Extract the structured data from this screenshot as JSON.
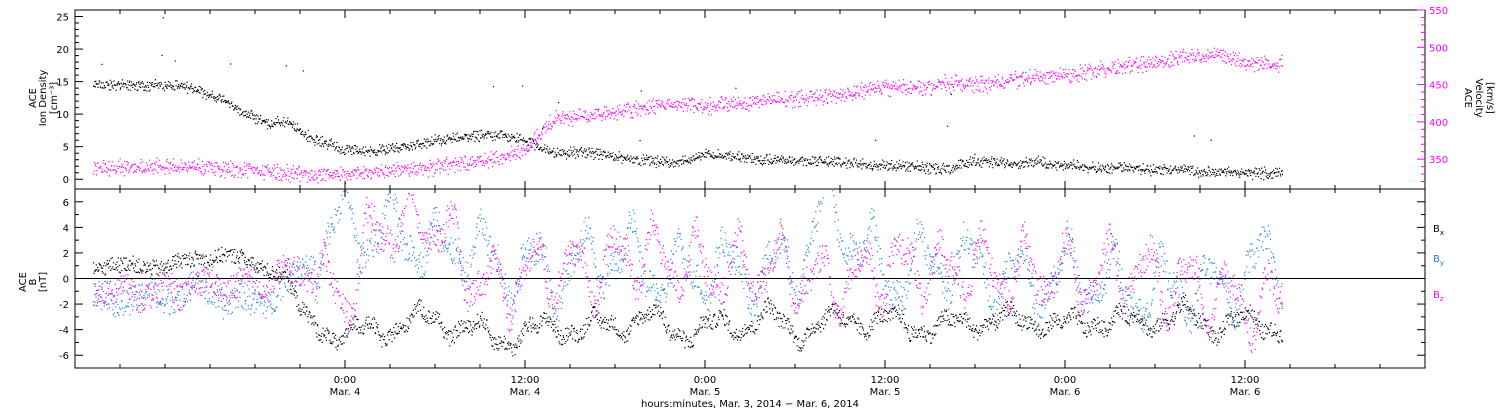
{
  "chart_data": [
    {
      "type": "scatter",
      "panel": "plasma",
      "ylabel_left": [
        "ACE",
        "Ion Density",
        "[cm⁻³]"
      ],
      "ylabel_right": [
        "ACE",
        "Velocity",
        "[km/s]"
      ],
      "ylim_left": [
        -1.5,
        26
      ],
      "yticks_left": [
        0,
        5,
        10,
        15,
        20,
        25
      ],
      "ylim_right": [
        310,
        550
      ],
      "yticks_right": [
        350,
        400,
        450,
        500,
        550
      ],
      "colors": {
        "density": "#000000",
        "velocity": "#ff00ff"
      },
      "series": [
        {
          "name": "Ion Density",
          "axis": "left",
          "hours": [
            -12,
            -10,
            -8,
            -7,
            -6,
            -5,
            -4,
            -3,
            -2,
            -1,
            0,
            2,
            4,
            6,
            8,
            10,
            12,
            14,
            16,
            18,
            20,
            22,
            24,
            26,
            28,
            30,
            32,
            34,
            36,
            38,
            40,
            42,
            44,
            46,
            48,
            50,
            52,
            54,
            56,
            58,
            60,
            62
          ],
          "values": [
            14.5,
            14.0,
            12.0,
            10.5,
            9.5,
            8.5,
            9.0,
            7.5,
            6.0,
            5.5,
            4.5,
            4.5,
            5.0,
            6.0,
            6.5,
            7.0,
            6.0,
            4.0,
            4.2,
            3.5,
            3.0,
            2.5,
            4.0,
            3.5,
            3.0,
            3.0,
            2.8,
            2.5,
            2.2,
            2.0,
            1.6,
            3.0,
            2.5,
            2.8,
            2.2,
            1.8,
            1.8,
            1.5,
            1.5,
            1.2,
            1.0,
            1.0
          ],
          "spread": 1.0
        },
        {
          "name": "Velocity",
          "axis": "right",
          "hours": [
            -12,
            -10,
            -8,
            -6,
            -4,
            -2,
            0,
            2,
            4,
            6,
            8,
            10,
            11,
            12,
            13,
            14,
            16,
            18,
            20,
            22,
            24,
            26,
            28,
            30,
            32,
            34,
            36,
            38,
            40,
            42,
            44,
            46,
            48,
            50,
            52,
            54,
            56,
            58,
            60,
            62
          ],
          "values": [
            340,
            340,
            338,
            335,
            332,
            330,
            330,
            335,
            338,
            340,
            345,
            350,
            360,
            362,
            385,
            405,
            408,
            415,
            420,
            425,
            422,
            425,
            430,
            432,
            435,
            440,
            448,
            445,
            452,
            450,
            455,
            460,
            462,
            470,
            475,
            480,
            490,
            490,
            480,
            478
          ],
          "spread": 13.0
        }
      ]
    },
    {
      "type": "scatter",
      "panel": "magnetic-field",
      "ylabel_left": [
        "ACE",
        "B",
        "[nT]"
      ],
      "ylim_left": [
        -7,
        7
      ],
      "yticks_left": [
        -6,
        -4,
        -2,
        0,
        2,
        4,
        6
      ],
      "zero_line": true,
      "colors": {
        "Bx": "#000000",
        "By": "#1f84d6",
        "Bz": "#ff00ff"
      },
      "legend": [
        {
          "base": "B",
          "sub": "x",
          "color": "#000000"
        },
        {
          "base": "B",
          "sub": "y",
          "color": "#1f84d6"
        },
        {
          "base": "B",
          "sub": "z",
          "color": "#ff00ff"
        }
      ],
      "series": [
        {
          "name": "Bx",
          "hours": [
            -12,
            -10,
            -8,
            -6,
            -4,
            -3,
            -2,
            -1,
            0,
            2,
            4,
            6,
            8,
            10,
            12,
            14,
            16,
            18,
            20,
            22,
            24,
            26,
            28,
            30,
            32,
            34,
            36,
            38,
            40,
            42,
            44,
            46,
            48,
            50,
            52,
            54,
            56,
            58,
            60,
            62
          ],
          "values": [
            1.0,
            1.5,
            2.0,
            1.0,
            0.5,
            -2.5,
            -3.5,
            -4.0,
            -4.5,
            -4.0,
            -3.5,
            -3.0,
            -4.0,
            -4.5,
            -4.5,
            -3.5,
            -4.0,
            -3.5,
            -3.0,
            -4.0,
            -4.0,
            -3.5,
            -3.0,
            -4.0,
            -3.5,
            -3.0,
            -3.5,
            -3.5,
            -4.0,
            -3.0,
            -3.5,
            -3.0,
            -4.0,
            -3.0,
            -3.5,
            -3.0,
            -3.0,
            -3.5,
            -3.5,
            -3.5
          ],
          "spread": 1.2,
          "jitter": 1.4
        },
        {
          "name": "By",
          "hours": [
            -12,
            -10,
            -8,
            -6,
            -4,
            -2,
            -1,
            0,
            2,
            4,
            6,
            8,
            10,
            12,
            14,
            16,
            18,
            20,
            22,
            24,
            26,
            28,
            30,
            32,
            34,
            36,
            38,
            40,
            42,
            44,
            46,
            48,
            50,
            52,
            54,
            56,
            58,
            60,
            62
          ],
          "values": [
            -1.5,
            -0.5,
            -1.5,
            -2.0,
            -0.5,
            1.5,
            3.5,
            4.5,
            3.5,
            4.0,
            2.0,
            3.0,
            1.0,
            1.0,
            0.0,
            1.5,
            2.0,
            1.0,
            0.0,
            1.0,
            0.5,
            0.5,
            1.0,
            5.5,
            3.5,
            0.0,
            1.0,
            1.5,
            1.0,
            0.0,
            -0.5,
            0.5,
            0.0,
            -1.0,
            -1.0,
            -0.5,
            -1.0,
            0.5,
            1.5
          ],
          "spread": 2.2,
          "jitter": 3.6
        },
        {
          "name": "Bz",
          "hours": [
            -12,
            -10,
            -8,
            -6,
            -4,
            -2,
            -1,
            0,
            2,
            4,
            6,
            8,
            10,
            12,
            14,
            16,
            18,
            20,
            22,
            24,
            26,
            28,
            30,
            32,
            34,
            36,
            38,
            40,
            42,
            44,
            46,
            48,
            50,
            52,
            54,
            56,
            58,
            60,
            62
          ],
          "values": [
            -1.0,
            -0.5,
            -0.5,
            -0.5,
            0.5,
            0.5,
            -1.0,
            -1.5,
            4.0,
            4.5,
            4.5,
            1.0,
            -1.0,
            0.5,
            1.0,
            0.5,
            1.5,
            2.0,
            1.0,
            1.0,
            0.5,
            1.0,
            0.5,
            -0.5,
            0.0,
            1.0,
            1.0,
            0.5,
            1.0,
            0.5,
            0.5,
            0.5,
            0.0,
            1.0,
            0.0,
            -0.5,
            -1.0,
            -2.0,
            -2.0
          ],
          "spread": 2.2,
          "jitter": 3.6
        }
      ]
    }
  ],
  "x_axis": {
    "xlim_hours": [
      -18,
      72
    ],
    "major_ticks": [
      {
        "hour": 0,
        "time": "0:00",
        "date": "Mar. 4"
      },
      {
        "hour": 12,
        "time": "12:00",
        "date": "Mar. 4"
      },
      {
        "hour": 24,
        "time": "0:00",
        "date": "Mar. 5"
      },
      {
        "hour": 36,
        "time": "12:00",
        "date": "Mar. 5"
      },
      {
        "hour": 48,
        "time": "0:00",
        "date": "Mar. 6"
      },
      {
        "hour": 60,
        "time": "12:00",
        "date": "Mar. 6"
      }
    ],
    "minor_tick_every_hours": 3,
    "data_end_hour": 62.5,
    "title": "hours:minutes, Mar.  3, 2014 − Mar.  6, 2014"
  }
}
